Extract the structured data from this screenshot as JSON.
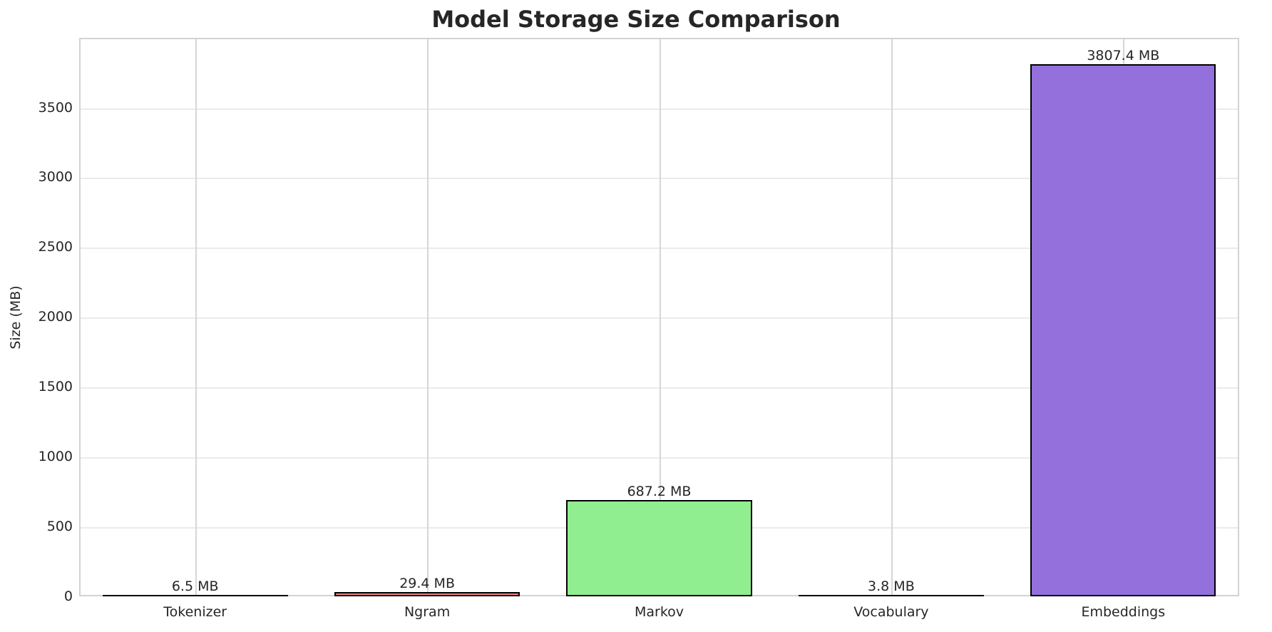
{
  "chart_data": {
    "type": "bar",
    "title": "Model Storage Size Comparison",
    "xlabel": "",
    "ylabel": "Size (MB)",
    "categories": [
      "Tokenizer",
      "Ngram",
      "Markov",
      "Vocabulary",
      "Embeddings"
    ],
    "values": [
      6.5,
      29.4,
      687.2,
      3.8,
      3807.4
    ],
    "value_labels": [
      "6.5 MB",
      "29.4 MB",
      "687.2 MB",
      "3.8 MB",
      "3807.4 MB"
    ],
    "colors": [
      "#7fb2e5",
      "#f08080",
      "#90ee90",
      "#f5deb3",
      "#9370db"
    ],
    "ylim": [
      0,
      3998
    ],
    "yticks": [
      0,
      500,
      1000,
      1500,
      2000,
      2500,
      3000,
      3500
    ],
    "ytick_labels": [
      "0",
      "500",
      "1000",
      "1500",
      "2000",
      "2500",
      "3000",
      "3500"
    ],
    "grid": true,
    "legend": null
  }
}
